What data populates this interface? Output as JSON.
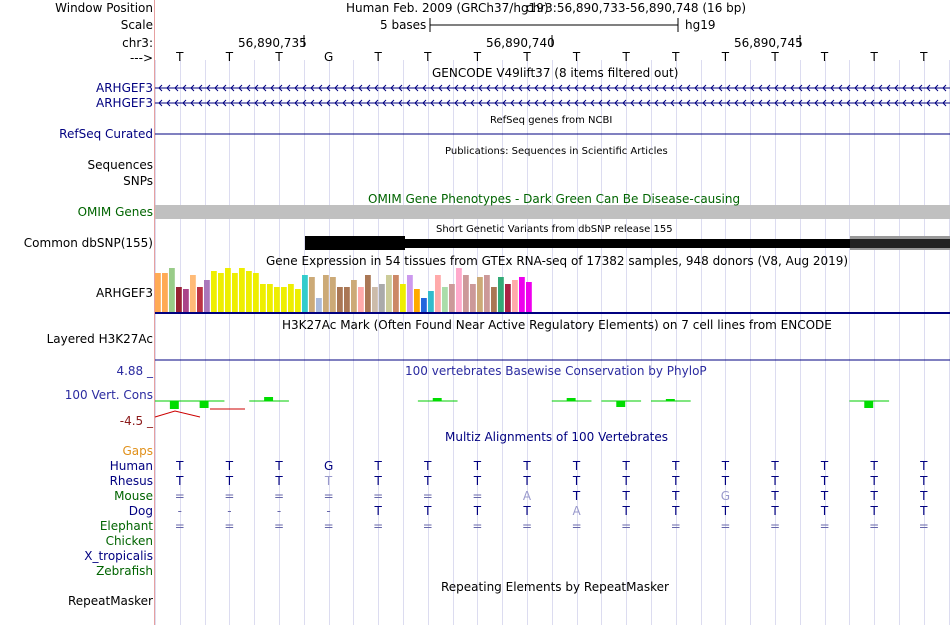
{
  "header": {
    "window_position_label": "Window Position",
    "assembly": "Human Feb. 2009 (GRCh37/hg19)",
    "position": "chr3:56,890,733-56,890,748 (16 bp)",
    "scale_label": "Scale",
    "scale_text": "5 bases",
    "scale_db": "hg19",
    "chrom_label": "chr3:",
    "strand_label": "--->",
    "coord_ticks": [
      "56,890,735",
      "56,890,740",
      "56,890,745"
    ],
    "bases": [
      "T",
      "T",
      "T",
      "G",
      "T",
      "T",
      "T",
      "T",
      "T",
      "T",
      "T",
      "T",
      "T",
      "T",
      "T",
      "T"
    ]
  },
  "tracks": {
    "gencode": {
      "title": "GENCODE V49lift37 (8 items filtered out)",
      "items": [
        "ARHGEF3",
        "ARHGEF3"
      ]
    },
    "refseq": {
      "label": "RefSeq Curated",
      "title": "RefSeq genes from NCBI"
    },
    "pubs": {
      "label": "Sequences",
      "title": "Publications: Sequences in Scientific Articles"
    },
    "snps": {
      "label": "SNPs"
    },
    "omim": {
      "label": "OMIM Genes",
      "title": "OMIM Gene Phenotypes - Dark Green Can Be Disease-causing"
    },
    "dbsnp": {
      "label": "Common dbSNP(155)",
      "title": "Short Genetic Variants from dbSNP release 155"
    },
    "gtex": {
      "label": "ARHGEF3",
      "title": "Gene Expression in 54 tissues from GTEx RNA-seq of 17382 samples, 948 donors (V8, Aug 2019)",
      "values": [
        0.85,
        0.85,
        0.95,
        0.55,
        0.5,
        0.8,
        0.55,
        0.7,
        0.9,
        0.85,
        0.95,
        0.85,
        0.95,
        0.9,
        0.85,
        0.6,
        0.6,
        0.55,
        0.55,
        0.6,
        0.5,
        0.8,
        0.75,
        0.3,
        0.8,
        0.75,
        0.55,
        0.55,
        0.7,
        0.55,
        0.8,
        0.55,
        0.6,
        0.8,
        0.8,
        0.6,
        0.8,
        0.5,
        0.3,
        0.45,
        0.8,
        0.55,
        0.6,
        0.95,
        0.8,
        0.6,
        0.75,
        0.8,
        0.55,
        0.75,
        0.6,
        0.7,
        0.75,
        0.65
      ],
      "colors": [
        "#ffaa55",
        "#ffaa55",
        "#99cc88",
        "#992233",
        "#aa4488",
        "#ffbb77",
        "#bb3344",
        "#aa77bb",
        "#eeee00",
        "#eeee00",
        "#eeee00",
        "#eeee00",
        "#eeee00",
        "#eeee00",
        "#eeee00",
        "#eeee00",
        "#eeee00",
        "#eeee00",
        "#eeee00",
        "#eeee00",
        "#eeee00",
        "#33cccc",
        "#ccaa77",
        "#aabbdd",
        "#ccaa77",
        "#ccaa77",
        "#aa7755",
        "#aa7755",
        "#ccaa77",
        "#ffaaaa",
        "#aa7755",
        "#ccbbaa",
        "#aaaaaa",
        "#cccc99",
        "#cc8866",
        "#eeee00",
        "#cc99ee",
        "#ffaa00",
        "#2266dd",
        "#33bbcc",
        "#ffaaaa",
        "#aaddaa",
        "#cc9999",
        "#ffaacc",
        "#cc9999",
        "#cc9999",
        "#ccaa77",
        "#cc9999",
        "#aa7755",
        "#33aa77",
        "#aa2244",
        "#ffaaaa",
        "#ee00ee",
        "#ee00ee"
      ]
    },
    "h3k27ac": {
      "label": "Layered H3K27Ac",
      "title": "H3K27Ac Mark (Often Found Near Active Regulatory Elements) on 7 cell lines from ENCODE"
    },
    "phylop": {
      "label": "100 Vert. Cons",
      "max_label": "4.88 _",
      "min_label": "-4.5 _",
      "title": "100 vertebrates Basewise Conservation by PhyloP"
    },
    "multiz": {
      "gaps_label": "Gaps",
      "title": "Multiz Alignments of 100 Vertebrates",
      "species": [
        {
          "name": "Human",
          "color": "#000080",
          "row": [
            "T",
            "T",
            "T",
            "G",
            "T",
            "T",
            "T",
            "T",
            "T",
            "T",
            "T",
            "T",
            "T",
            "T",
            "T",
            "T"
          ]
        },
        {
          "name": "Rhesus",
          "color": "#000080",
          "row": [
            "T",
            "T",
            "T",
            "T",
            "T",
            "T",
            "T",
            "T",
            "T",
            "T",
            "T",
            "T",
            "T",
            "T",
            "T",
            "T"
          ]
        },
        {
          "name": "Mouse",
          "color": "#006400",
          "row": [
            "=",
            "=",
            "=",
            "=",
            "=",
            "=",
            "=",
            "A",
            "T",
            "T",
            "T",
            "G",
            "T",
            "T",
            "T",
            "T"
          ]
        },
        {
          "name": "Dog",
          "color": "#000080",
          "row": [
            "-",
            "-",
            "-",
            "-",
            "T",
            "T",
            "T",
            "T",
            "A",
            "T",
            "T",
            "T",
            "T",
            "T",
            "T",
            "T"
          ]
        },
        {
          "name": "Elephant",
          "color": "#006400",
          "row": [
            "=",
            "=",
            "=",
            "=",
            "=",
            "=",
            "=",
            "=",
            "=",
            "=",
            "=",
            "=",
            "=",
            "=",
            "=",
            "="
          ]
        },
        {
          "name": "Chicken",
          "color": "#006400",
          "row": []
        },
        {
          "name": "X_tropicalis",
          "color": "#000080",
          "row": []
        },
        {
          "name": "Zebrafish",
          "color": "#006400",
          "row": []
        }
      ]
    },
    "rmsk": {
      "label": "RepeatMasker",
      "title": "Repeating Elements by RepeatMasker"
    }
  },
  "colors": {
    "navy": "#000080",
    "green": "#006400",
    "gaps": "#e0901a",
    "omim_bar": "#c0c0c0",
    "conservation_pos": "#00cc00",
    "conservation_neg": "#cc0000",
    "phylop_label": "#8b1a1a",
    "phylop_title": "#2b2ba0"
  }
}
